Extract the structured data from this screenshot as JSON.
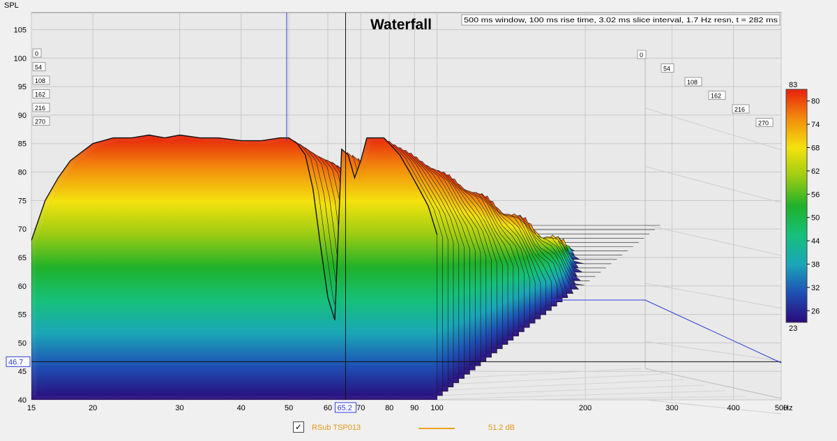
{
  "chart_data": {
    "type": "area",
    "title": "Waterfall",
    "info": "500 ms window, 100 ms rise time, 3.02 ms slice interval, 1.7 Hz resn, t = 282 ms",
    "ylabel": "SPL",
    "x_unit": "Hz",
    "x_scale": "log",
    "xlim": [
      15,
      500
    ],
    "ylim": [
      40,
      108
    ],
    "x_ticks": [
      15,
      20,
      30,
      40,
      50,
      60,
      70,
      80,
      90,
      100,
      200,
      300,
      400,
      500
    ],
    "y_ticks": [
      40,
      45,
      50,
      55,
      60,
      65,
      70,
      75,
      80,
      85,
      90,
      95,
      100,
      105
    ],
    "time_slices_ms": [
      "0",
      "54",
      "108",
      "162",
      "216",
      "270"
    ],
    "cursor_freq": "65.2",
    "cursor_spl": "46.7",
    "front_slice": {
      "name": "t = 0 ms",
      "x": [
        15,
        16,
        17,
        18,
        20,
        22,
        24,
        26,
        28,
        30,
        33,
        36,
        40,
        44,
        48,
        50,
        52,
        54,
        56,
        58,
        60,
        62,
        64,
        66,
        68,
        70,
        72,
        75,
        78,
        80,
        84,
        88,
        92,
        96,
        100
      ],
      "y": [
        68,
        75,
        79,
        82,
        85,
        86,
        86,
        86.5,
        86,
        86.5,
        86,
        86,
        85.5,
        85.5,
        86,
        86,
        85,
        83,
        77,
        67,
        58,
        54,
        84,
        83,
        79,
        82,
        86,
        86,
        86,
        85,
        83,
        80,
        77,
        74,
        69
      ]
    },
    "colorbar": {
      "min": "23",
      "max": "83",
      "ticks": [
        "80",
        "74",
        "68",
        "62",
        "56",
        "50",
        "44",
        "38",
        "32",
        "26"
      ]
    },
    "colors": {
      "scale": [
        "#2a0a7a",
        "#1e4fb4",
        "#1aa6b8",
        "#16c07a",
        "#1fb12a",
        "#9ccc12",
        "#f4e20e",
        "#f28c0c",
        "#e8200c"
      ],
      "cursor_blue": "#2a3ad8",
      "legend_text": "#e39614"
    }
  },
  "legend": {
    "checked": "✓",
    "name": "RSub TSP013",
    "value": "51.2 dB"
  }
}
